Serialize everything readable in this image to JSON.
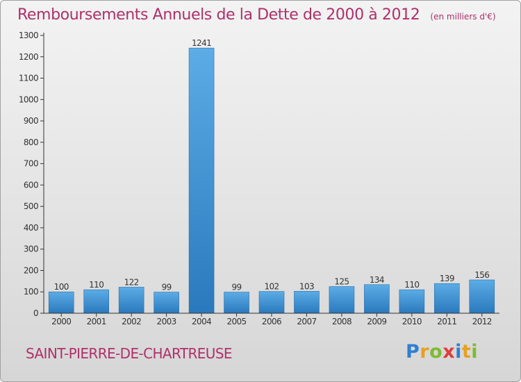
{
  "chart_data": {
    "type": "bar",
    "title": "Remboursements Annuels de la Dette de 2000 à 2012",
    "subtitle": "(en milliers d'€)",
    "categories": [
      "2000",
      "2001",
      "2002",
      "2003",
      "2004",
      "2005",
      "2006",
      "2007",
      "2008",
      "2009",
      "2010",
      "2011",
      "2012"
    ],
    "values": [
      100,
      110,
      122,
      99,
      1241,
      99,
      102,
      103,
      125,
      134,
      110,
      139,
      156
    ],
    "ylim": [
      0,
      1300
    ],
    "yticks": [
      0,
      100,
      200,
      300,
      400,
      500,
      600,
      700,
      800,
      900,
      1000,
      1100,
      1200,
      1300
    ],
    "grid": false,
    "bar_color": "#3f95d4"
  },
  "footer": {
    "commune": "SAINT-PIERRE-DE-CHARTREUSE",
    "logo_letters": [
      {
        "ch": "P",
        "color": "#2f7fd1"
      },
      {
        "ch": "r",
        "color": "#e8a020"
      },
      {
        "ch": "o",
        "color": "#7dbb2f"
      },
      {
        "ch": "x",
        "color": "#e03c3c"
      },
      {
        "ch": "i",
        "color": "#2f7fd1"
      },
      {
        "ch": "t",
        "color": "#e8a020"
      },
      {
        "ch": "i",
        "color": "#7dbb2f"
      }
    ]
  },
  "colors": {
    "title": "#b0306a",
    "axis": "#333333"
  }
}
